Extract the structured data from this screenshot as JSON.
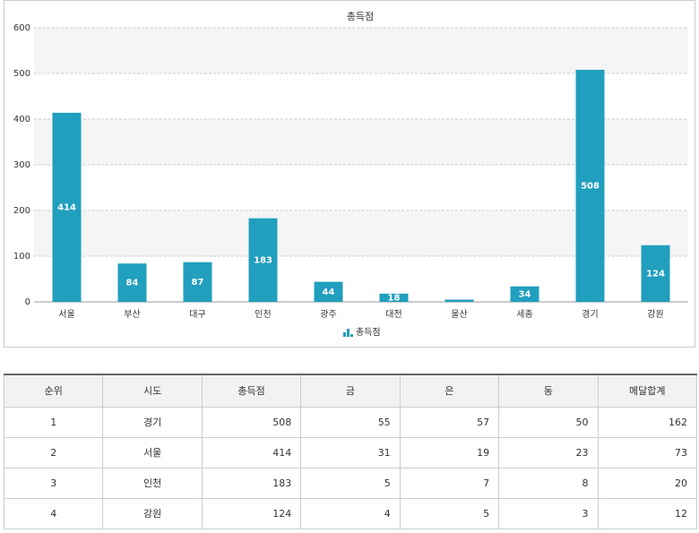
{
  "chart_data": {
    "type": "bar",
    "title": "총득점",
    "categories": [
      "서울",
      "부산",
      "대구",
      "인천",
      "광주",
      "대전",
      "울산",
      "세종",
      "경기",
      "강원"
    ],
    "series": [
      {
        "name": "총득점",
        "color": "#219fbe",
        "values": [
          414,
          84,
          87,
          183,
          44,
          18,
          5,
          34,
          508,
          124
        ]
      }
    ],
    "ylim": [
      0,
      600
    ],
    "yticks": [
      0,
      100,
      200,
      300,
      400,
      500,
      600
    ],
    "grid": true,
    "legend": "bottom"
  },
  "table": {
    "headers": [
      "순위",
      "시도",
      "총득점",
      "금",
      "은",
      "동",
      "메달합계"
    ],
    "rows": [
      [
        1,
        "경기",
        508,
        55,
        57,
        50,
        162
      ],
      [
        2,
        "서울",
        414,
        31,
        19,
        23,
        73
      ],
      [
        3,
        "인천",
        183,
        5,
        7,
        8,
        20
      ],
      [
        4,
        "강원",
        124,
        4,
        5,
        3,
        12
      ]
    ]
  }
}
